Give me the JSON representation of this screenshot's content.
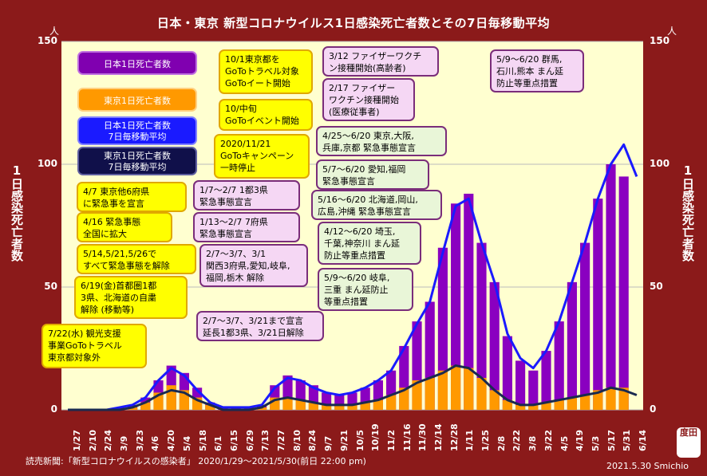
{
  "title": "日本・東京 新型コロナウイルス1日感染死亡者数とその7日毎移動平均",
  "unit_left": "人",
  "unit_right": "人",
  "ylabel_left": "1日感染死亡者数",
  "ylabel_right": "1日感染死亡者数",
  "footer_source": "読売新聞:「新型コロナウイルスの感染者」 2020/1/29〜2021/5/30(前日 22:00 pm)",
  "footer_credit": "2021.5.30 Smichio",
  "seal_text": "度田",
  "legend": {
    "japan_daily": "日本1日死亡者数",
    "tokyo_daily": "東京1日死亡者数",
    "japan_ma": "日本1日死亡者数\n7日毎移動平均",
    "tokyo_ma": "東京1日死亡者数\n7日毎移動平均"
  },
  "annotations": {
    "a1": "10/1東京都を\nGoToトラベル対象\nGoToイート開始",
    "a2": "10/中旬\nGoToイベント開始",
    "a3": "2020/11/21\nGoToキャンペーン\n一時停止",
    "a4": "4/7 東京他6府県\nに緊急事を宣言",
    "a5": "4/16 緊急事態\n全国に拡大",
    "a6": "5/14,5/21,5/26で\nすべて緊急事態を解除",
    "a7": "6/19(金)首都圏1都\n3県、北海道の自粛\n解除 (移動等)",
    "a8": "7/22(水) 観光支援\n事業GoToトラベル\n東京都対象外",
    "b1": "1/7〜2/7 1都3県\n緊急事態宣言",
    "b2": "1/13〜2/7 7府県\n緊急事態宣言",
    "b3": "2/7〜3/7、3/1\n関西3府県,愛知,岐阜,\n福岡,栃木 解除",
    "b4": "2/7〜3/7、3/21まで宣言\n延長1都3県、3/21日解除",
    "c1": "3/12 ファイザーワクチ\nン接種開始(高齢者)",
    "c2": "2/17 ファイザー\nワクチン接種開始\n(医療従事者)",
    "c3": "5/9〜6/20 群馬,\n石川,熊本 まん延\n防止等重点措置",
    "g1": "4/25〜6/20 東京,大阪,\n兵庫,京都 緊急事態宣言",
    "g2": "5/7〜6/20 愛知,福岡\n緊急事態宣言",
    "g3": "5/16〜6/20 北海道,岡山,\n広島,沖縄 緊急事態宣言",
    "g4": "4/12〜6/20 埼玉,\n千葉,神奈川 まん延\n防止等重点措置",
    "g5": "5/9〜6/20 岐阜,\n三重 まん延防止\n等重点措置"
  },
  "colors": {
    "plot_bg": "#ffffd0",
    "japan_daily": "#8a00c0",
    "tokyo_daily": "#ff9900",
    "japan_ma": "#1a1aff",
    "tokyo_ma": "#1a2a50"
  },
  "chart_data": {
    "type": "bar",
    "ylim": [
      0,
      150
    ],
    "y_ticks": [
      "0",
      "50",
      "100",
      "150"
    ],
    "x_tick_labels": [
      "1/27",
      "2/10",
      "2/24",
      "3/9",
      "3/23",
      "4/6",
      "4/20",
      "5/4",
      "5/18",
      "6/1",
      "6/15",
      "6/29",
      "7/13",
      "7/27",
      "8/10",
      "8/24",
      "9/7",
      "9/21",
      "10/5",
      "10/19",
      "11/2",
      "11/16",
      "11/30",
      "12/14",
      "12/28",
      "1/11",
      "1/25",
      "2/8",
      "2/22",
      "3/8",
      "3/22",
      "4/5",
      "4/19",
      "5/3",
      "5/17",
      "5/31",
      "6/14"
    ],
    "series": [
      {
        "name": "日本1日死亡者数",
        "kind": "bar",
        "weekly_values": [
          0,
          0,
          0,
          0,
          1,
          2,
          5,
          12,
          18,
          15,
          9,
          3,
          1,
          1,
          1,
          2,
          10,
          14,
          12,
          10,
          7,
          6,
          7,
          9,
          12,
          16,
          26,
          36,
          44,
          66,
          84,
          88,
          68,
          52,
          30,
          20,
          16,
          24,
          36,
          52,
          68,
          86,
          100,
          95,
          0
        ]
      },
      {
        "name": "東京1日死亡者数",
        "kind": "bar",
        "weekly_values": [
          0,
          0,
          0,
          0,
          0,
          1,
          3,
          7,
          10,
          8,
          5,
          2,
          0,
          0,
          0,
          1,
          5,
          5,
          4,
          3,
          2,
          2,
          2,
          3,
          4,
          6,
          9,
          12,
          13,
          16,
          18,
          17,
          13,
          8,
          4,
          2,
          2,
          3,
          4,
          5,
          6,
          8,
          9,
          9,
          0
        ]
      },
      {
        "name": "日本1日死亡者数 7日毎移動平均",
        "kind": "line",
        "weekly_values": [
          0,
          0,
          0,
          0,
          1,
          2,
          5,
          12,
          17,
          14,
          8,
          3,
          1,
          1,
          1,
          2,
          9,
          13,
          12,
          9,
          7,
          6,
          7,
          9,
          12,
          16,
          25,
          35,
          44,
          64,
          83,
          86,
          68,
          52,
          31,
          21,
          17,
          24,
          36,
          52,
          68,
          86,
          100,
          108,
          95
        ]
      },
      {
        "name": "東京1日死亡者数 7日毎移動平均",
        "kind": "line",
        "weekly_values": [
          0,
          0,
          0,
          0,
          0,
          1,
          3,
          6,
          8,
          7,
          4,
          2,
          0,
          0,
          0,
          1,
          4,
          5,
          4,
          3,
          2,
          2,
          2,
          3,
          4,
          6,
          8,
          11,
          13,
          15,
          18,
          17,
          13,
          8,
          4,
          2,
          2,
          3,
          4,
          5,
          6,
          7,
          9,
          8,
          6
        ]
      }
    ]
  }
}
